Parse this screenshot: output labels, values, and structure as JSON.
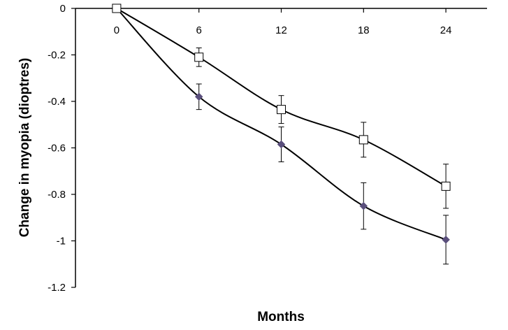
{
  "chart_data": {
    "type": "scatter",
    "title": "",
    "xlabel": "Months",
    "ylabel": "Change in myopia (dioptres)",
    "xlim": [
      -3,
      27
    ],
    "ylim": [
      -1.2,
      0
    ],
    "x_ticks": [
      0,
      6,
      12,
      18,
      24
    ],
    "y_ticks": [
      0,
      -0.2,
      -0.4,
      -0.6,
      -0.8,
      -1,
      -1.2
    ],
    "x_tick_labels": [
      "0",
      "6",
      "12",
      "18",
      "24"
    ],
    "y_tick_labels": [
      "0",
      "-0.2",
      "-0.4",
      "-0.6",
      "-0.8",
      "-1",
      "-1.2"
    ],
    "x_axis_position": "top, at y = 0",
    "grid": false,
    "legend": "none",
    "series": [
      {
        "marker": "open-square",
        "color": "#000000",
        "x": [
          0,
          6,
          12,
          18,
          24
        ],
        "y": [
          0,
          -0.21,
          -0.435,
          -0.565,
          -0.765
        ],
        "err_low": [
          0,
          0.04,
          0.06,
          0.075,
          0.095
        ],
        "err_high": [
          0,
          0.04,
          0.06,
          0.075,
          0.095
        ],
        "trend": "smooth curve through points"
      },
      {
        "marker": "filled-diamond",
        "color": "#5a4f7c",
        "x": [
          0,
          6,
          12,
          18,
          24
        ],
        "y": [
          0,
          -0.38,
          -0.585,
          -0.85,
          -0.995
        ],
        "err_low": [
          0,
          0.055,
          0.075,
          0.1,
          0.105
        ],
        "err_high": [
          0,
          0.055,
          0.075,
          0.1,
          0.105
        ],
        "trend": "smooth curve through points"
      }
    ]
  }
}
